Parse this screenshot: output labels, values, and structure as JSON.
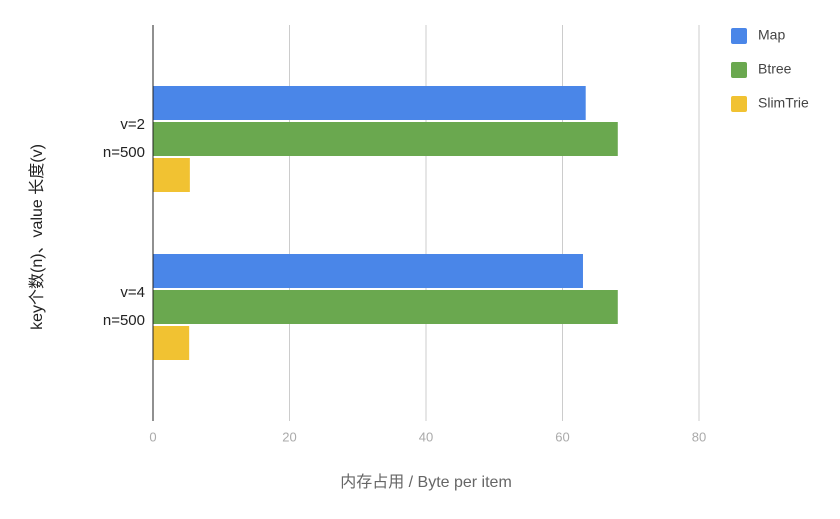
{
  "chart_data": {
    "type": "hbar",
    "y_label": "key个数(n)、value 长度(v)",
    "x_label": "内存占用 / Byte per item",
    "categories": [
      "v=2\nn=500",
      "v=4\nn=500"
    ],
    "series": [
      {
        "name": "Map",
        "color": "#4a86e8",
        "values": [
          63.4,
          63.0
        ]
      },
      {
        "name": "Btree",
        "color": "#6aa84f",
        "values": [
          68.1,
          68.1
        ]
      },
      {
        "name": "SlimTrie",
        "color": "#f1c232",
        "values": [
          5.4,
          5.3
        ]
      }
    ],
    "xlim": [
      0,
      80
    ],
    "xticks": [
      0,
      20,
      40,
      60,
      80
    ],
    "grid": true,
    "legend": "top-right"
  }
}
